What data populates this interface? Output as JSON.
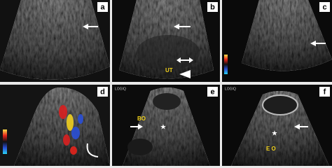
{
  "panels": [
    {
      "label": "a"
    },
    {
      "label": "b",
      "annotations": [
        "UT"
      ]
    },
    {
      "label": "c"
    },
    {
      "label": "d"
    },
    {
      "label": "e",
      "annotations": [
        "BO"
      ],
      "device": "LOGIQ"
    },
    {
      "label": "f",
      "annotations": [
        "E O"
      ],
      "device": "LOGIQ"
    }
  ]
}
